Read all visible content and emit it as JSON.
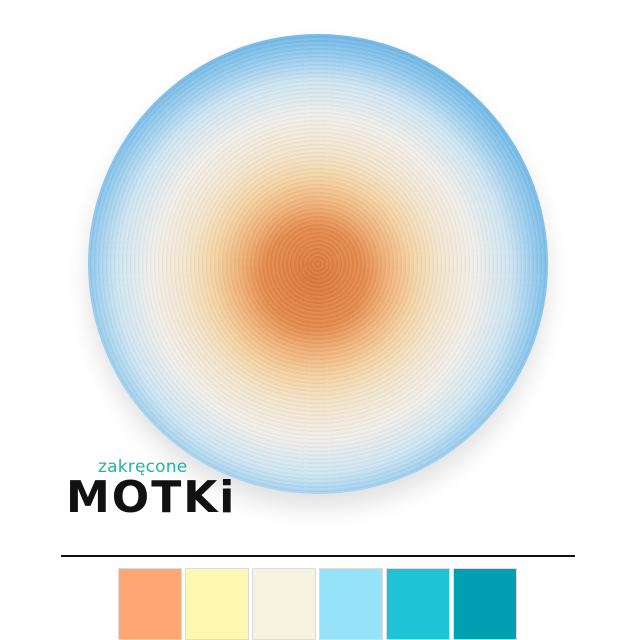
{
  "logo": {
    "small": "zakręcone",
    "big": "MOTKi"
  },
  "swatches": [
    {
      "color": "#ffa674"
    },
    {
      "color": "#fef9b2"
    },
    {
      "color": "#f5f2df"
    },
    {
      "color": "#96e2f8"
    },
    {
      "color": "#1ec3d6"
    },
    {
      "color": "#00a0b3"
    }
  ]
}
